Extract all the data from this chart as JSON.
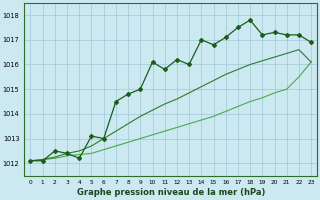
{
  "x": [
    0,
    1,
    2,
    3,
    4,
    5,
    6,
    7,
    8,
    9,
    10,
    11,
    12,
    13,
    14,
    15,
    16,
    17,
    18,
    19,
    20,
    21,
    22,
    23
  ],
  "y_main": [
    1012.1,
    1012.1,
    1012.5,
    1012.4,
    1012.2,
    1013.1,
    1013.0,
    1014.5,
    1014.8,
    1015.0,
    1016.1,
    1015.8,
    1016.2,
    1016.0,
    1017.0,
    1016.8,
    1017.1,
    1017.5,
    1017.8,
    1017.2,
    1017.3,
    1017.2,
    1017.2,
    1016.9
  ],
  "y_upper_env": [
    1012.1,
    1012.1,
    1012.5,
    1012.4,
    1012.2,
    1013.1,
    1013.0,
    1014.5,
    1014.8,
    1015.0,
    1016.1,
    1015.8,
    1016.2,
    1016.0,
    1017.0,
    1016.8,
    1017.1,
    1017.5,
    1017.8,
    1017.8,
    1017.3,
    1017.2,
    1017.2,
    1016.1
  ],
  "y_lower_diag": [
    1012.1,
    1012.15,
    1012.2,
    1012.3,
    1012.35,
    1012.4,
    1012.55,
    1012.7,
    1012.85,
    1013.0,
    1013.15,
    1013.3,
    1013.45,
    1013.6,
    1013.75,
    1013.9,
    1014.1,
    1014.3,
    1014.5,
    1014.65,
    1014.85,
    1015.0,
    1015.5,
    1016.1
  ],
  "y_upper_diag": [
    1012.1,
    1012.15,
    1012.25,
    1012.4,
    1012.5,
    1012.7,
    1013.0,
    1013.3,
    1013.6,
    1013.9,
    1014.15,
    1014.4,
    1014.6,
    1014.85,
    1015.1,
    1015.35,
    1015.6,
    1015.8,
    1016.0,
    1016.15,
    1016.3,
    1016.45,
    1016.6,
    1016.1
  ],
  "color_main": "#1a5e1a",
  "color_dark": "#1a5e1a",
  "color_mid": "#2d7a2d",
  "color_light": "#4aaa4a",
  "bg_color": "#cce8f0",
  "grid_color": "#a0c8d8",
  "title": "Graphe pression niveau de la mer (hPa)",
  "ylim": [
    1011.5,
    1018.5
  ],
  "yticks": [
    1012,
    1013,
    1014,
    1015,
    1016,
    1017,
    1018
  ],
  "xlim": [
    -0.5,
    23.5
  ]
}
